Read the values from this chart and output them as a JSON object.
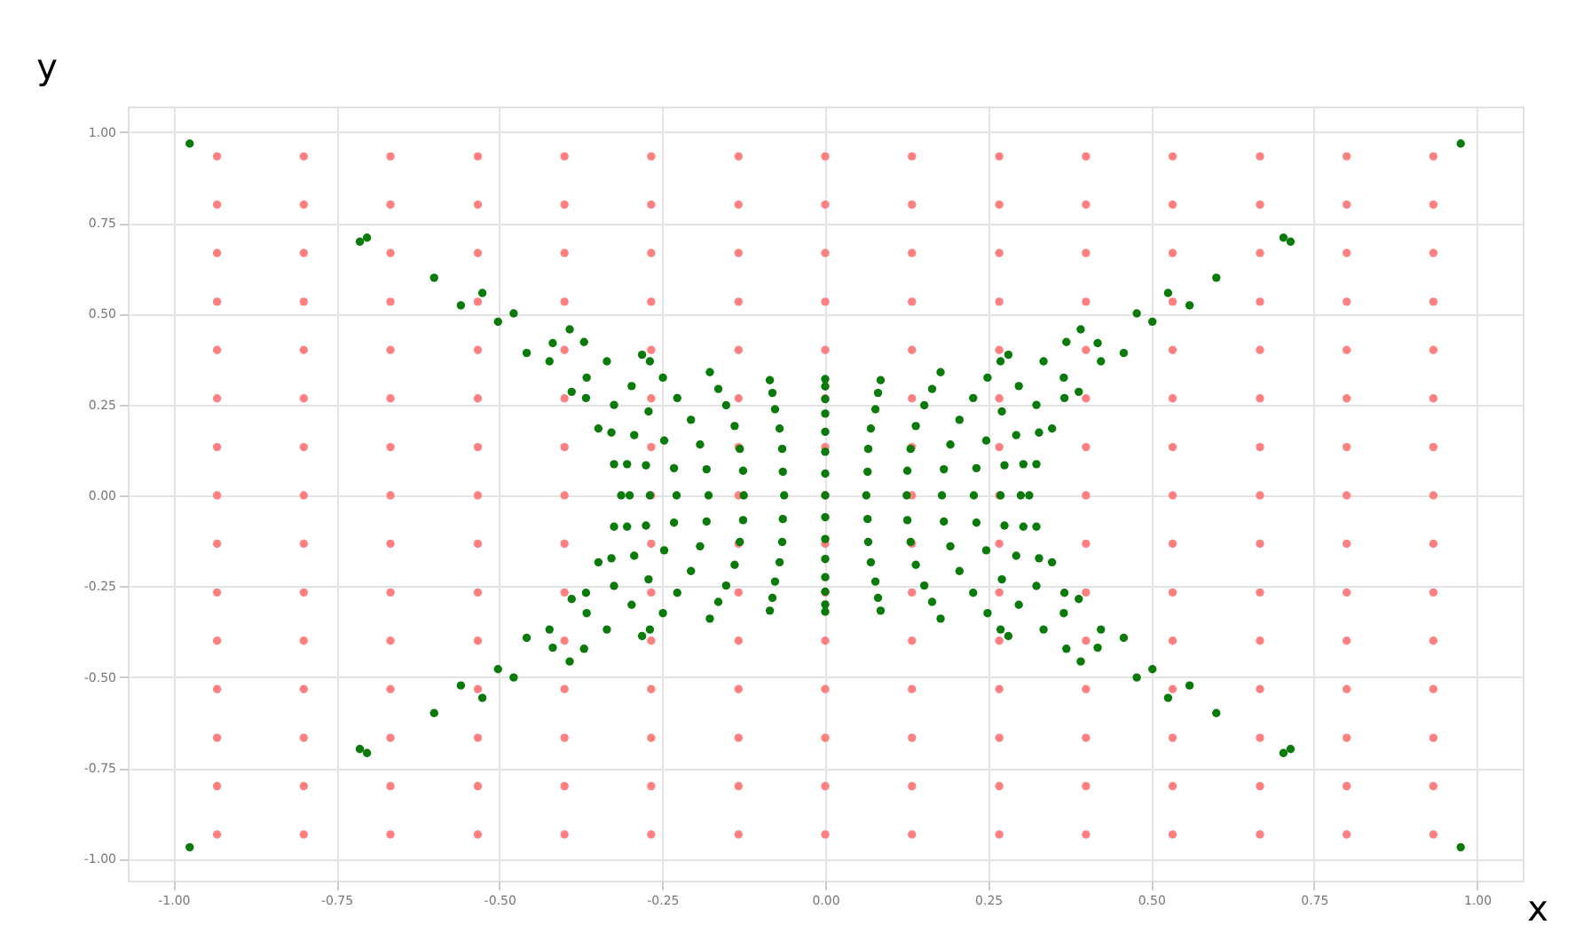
{
  "chart_data": {
    "type": "scatter",
    "xlabel": "x",
    "ylabel": "y",
    "xlim": [
      -1.07,
      1.07
    ],
    "ylim": [
      -1.06,
      1.07
    ],
    "xticks": [
      {
        "value": -1,
        "label": "-1.00"
      },
      {
        "value": -0.75,
        "label": "-0.75"
      },
      {
        "value": -0.5,
        "label": "-0.50"
      },
      {
        "value": -0.25,
        "label": "-0.25"
      },
      {
        "value": 0,
        "label": "0.00"
      },
      {
        "value": 0.25,
        "label": "0.25"
      },
      {
        "value": 0.5,
        "label": "0.50"
      },
      {
        "value": 0.75,
        "label": "0.75"
      },
      {
        "value": 1,
        "label": "1.00"
      }
    ],
    "yticks": [
      {
        "value": -1,
        "label": "-1.00"
      },
      {
        "value": -0.75,
        "label": "-0.75"
      },
      {
        "value": -0.5,
        "label": "-0.50"
      },
      {
        "value": -0.25,
        "label": "-0.25"
      },
      {
        "value": 0,
        "label": "0.00"
      },
      {
        "value": 0.25,
        "label": "0.25"
      },
      {
        "value": 0.5,
        "label": "0.50"
      },
      {
        "value": 0.75,
        "label": "0.75"
      },
      {
        "value": 1,
        "label": "1.00"
      }
    ],
    "grid": true,
    "marker": "circle",
    "series": [
      {
        "color": "#ff8080",
        "x": [
          -0.933,
          -0.8,
          -0.667,
          -0.533,
          -0.4,
          -0.267,
          -0.133,
          0,
          0.133,
          0.267,
          0.4,
          0.533,
          0.667,
          0.8,
          0.933,
          -0.933,
          -0.8,
          -0.667,
          -0.533,
          -0.4,
          -0.267,
          -0.133,
          0,
          0.133,
          0.267,
          0.4,
          0.533,
          0.667,
          0.8,
          0.933,
          -0.933,
          -0.8,
          -0.667,
          -0.533,
          -0.4,
          -0.267,
          -0.133,
          0,
          0.133,
          0.267,
          0.4,
          0.533,
          0.667,
          0.8,
          0.933,
          -0.933,
          -0.8,
          -0.667,
          -0.533,
          -0.4,
          -0.267,
          -0.133,
          0,
          0.133,
          0.267,
          0.4,
          0.533,
          0.667,
          0.8,
          0.933,
          -0.933,
          -0.8,
          -0.667,
          -0.533,
          -0.4,
          -0.267,
          -0.133,
          0,
          0.133,
          0.267,
          0.4,
          0.533,
          0.667,
          0.8,
          0.933,
          -0.933,
          -0.8,
          -0.667,
          -0.533,
          -0.4,
          -0.267,
          -0.133,
          0,
          0.133,
          0.267,
          0.4,
          0.533,
          0.667,
          0.8,
          0.933,
          -0.933,
          -0.8,
          -0.667,
          -0.533,
          -0.4,
          -0.267,
          -0.133,
          0,
          0.133,
          0.267,
          0.4,
          0.533,
          0.667,
          0.8,
          0.933,
          -0.933,
          -0.8,
          -0.667,
          -0.533,
          -0.4,
          -0.267,
          -0.133,
          0,
          0.133,
          0.267,
          0.4,
          0.533,
          0.667,
          0.8,
          0.933,
          -0.933,
          -0.8,
          -0.667,
          -0.533,
          -0.4,
          -0.267,
          -0.133,
          0,
          0.133,
          0.267,
          0.4,
          0.533,
          0.667,
          0.8,
          0.933,
          -0.933,
          -0.8,
          -0.667,
          -0.533,
          -0.4,
          -0.267,
          -0.133,
          0,
          0.133,
          0.267,
          0.4,
          0.533,
          0.667,
          0.8,
          0.933,
          -0.933,
          -0.8,
          -0.667,
          -0.533,
          -0.4,
          -0.267,
          -0.133,
          0,
          0.133,
          0.267,
          0.4,
          0.533,
          0.667,
          0.8,
          0.933,
          -0.933,
          -0.8,
          -0.667,
          -0.533,
          -0.4,
          -0.267,
          -0.133,
          0,
          0.133,
          0.267,
          0.4,
          0.533,
          0.667,
          0.8,
          0.933,
          -0.933,
          -0.8,
          -0.667,
          -0.533,
          -0.4,
          -0.267,
          -0.133,
          0,
          0.133,
          0.267,
          0.4,
          0.533,
          0.667,
          0.8,
          0.933,
          -0.933,
          -0.8,
          -0.667,
          -0.533,
          -0.4,
          -0.267,
          -0.133,
          0,
          0.133,
          0.267,
          0.4,
          0.533,
          0.667,
          0.8,
          0.933,
          -0.933,
          -0.8,
          -0.667,
          -0.533,
          -0.4,
          -0.267,
          -0.133,
          0,
          0.133,
          0.267,
          0.4,
          0.533,
          0.667,
          0.8,
          0.933
        ],
        "values": [
          -0.933,
          -0.933,
          -0.933,
          -0.933,
          -0.933,
          -0.933,
          -0.933,
          -0.933,
          -0.933,
          -0.933,
          -0.933,
          -0.933,
          -0.933,
          -0.933,
          -0.933,
          -0.8,
          -0.8,
          -0.8,
          -0.8,
          -0.8,
          -0.8,
          -0.8,
          -0.8,
          -0.8,
          -0.8,
          -0.8,
          -0.8,
          -0.8,
          -0.8,
          -0.8,
          -0.667,
          -0.667,
          -0.667,
          -0.667,
          -0.667,
          -0.667,
          -0.667,
          -0.667,
          -0.667,
          -0.667,
          -0.667,
          -0.667,
          -0.667,
          -0.667,
          -0.667,
          -0.533,
          -0.533,
          -0.533,
          -0.533,
          -0.533,
          -0.533,
          -0.533,
          -0.533,
          -0.533,
          -0.533,
          -0.533,
          -0.533,
          -0.533,
          -0.533,
          -0.533,
          -0.4,
          -0.4,
          -0.4,
          -0.4,
          -0.4,
          -0.4,
          -0.4,
          -0.4,
          -0.4,
          -0.4,
          -0.4,
          -0.4,
          -0.4,
          -0.4,
          -0.4,
          -0.267,
          -0.267,
          -0.267,
          -0.267,
          -0.267,
          -0.267,
          -0.267,
          -0.267,
          -0.267,
          -0.267,
          -0.267,
          -0.267,
          -0.267,
          -0.267,
          -0.267,
          -0.133,
          -0.133,
          -0.133,
          -0.133,
          -0.133,
          -0.133,
          -0.133,
          -0.133,
          -0.133,
          -0.133,
          -0.133,
          -0.133,
          -0.133,
          -0.133,
          -0.133,
          0,
          0,
          0,
          0,
          0,
          0,
          0,
          0,
          0,
          0,
          0,
          0,
          0,
          0,
          0,
          0.133,
          0.133,
          0.133,
          0.133,
          0.133,
          0.133,
          0.133,
          0.133,
          0.133,
          0.133,
          0.133,
          0.133,
          0.133,
          0.133,
          0.133,
          0.267,
          0.267,
          0.267,
          0.267,
          0.267,
          0.267,
          0.267,
          0.267,
          0.267,
          0.267,
          0.267,
          0.267,
          0.267,
          0.267,
          0.267,
          0.4,
          0.4,
          0.4,
          0.4,
          0.4,
          0.4,
          0.4,
          0.4,
          0.4,
          0.4,
          0.4,
          0.4,
          0.4,
          0.4,
          0.4,
          0.533,
          0.533,
          0.533,
          0.533,
          0.533,
          0.533,
          0.533,
          0.533,
          0.533,
          0.533,
          0.533,
          0.533,
          0.533,
          0.533,
          0.533,
          0.667,
          0.667,
          0.667,
          0.667,
          0.667,
          0.667,
          0.667,
          0.667,
          0.667,
          0.667,
          0.667,
          0.667,
          0.667,
          0.667,
          0.667,
          0.8,
          0.8,
          0.8,
          0.8,
          0.8,
          0.8,
          0.8,
          0.8,
          0.8,
          0.8,
          0.8,
          0.8,
          0.8,
          0.8,
          0.8,
          0.933,
          0.933,
          0.933,
          0.933,
          0.933,
          0.933,
          0.933,
          0.933,
          0.933,
          0.933,
          0.933,
          0.933,
          0.933,
          0.933,
          0.933
        ]
      },
      {
        "color": "#0a7a0a",
        "x": [
          0.065,
          0.066,
          0.07,
          0.077,
          0.081,
          0.085,
          0.126,
          0.131,
          0.139,
          0.152,
          0.164,
          0.177,
          0.182,
          0.192,
          0.206,
          0.227,
          0.249,
          0.269,
          0.281,
          0.232,
          0.247,
          0.271,
          0.297,
          0.335,
          0.37,
          0.275,
          0.293,
          0.324,
          0.366,
          0.418,
          0.304,
          0.328,
          0.367,
          0.423,
          0.324,
          0.348,
          0.389,
          0.458,
          0.392,
          0.478,
          0.502,
          0.526,
          0.559,
          0.6,
          0.703,
          0.714,
          0.975,
          -0.065,
          -0.066,
          -0.07,
          -0.077,
          -0.081,
          -0.085,
          -0.126,
          -0.131,
          -0.139,
          -0.152,
          -0.164,
          -0.177,
          -0.182,
          -0.192,
          -0.206,
          -0.227,
          -0.249,
          -0.269,
          -0.281,
          -0.232,
          -0.247,
          -0.271,
          -0.297,
          -0.335,
          -0.37,
          -0.275,
          -0.293,
          -0.324,
          -0.366,
          -0.418,
          -0.304,
          -0.328,
          -0.367,
          -0.423,
          -0.324,
          -0.348,
          -0.389,
          -0.458,
          -0.392,
          -0.478,
          -0.502,
          -0.526,
          -0.559,
          -0.6,
          -0.703,
          -0.714,
          -0.975,
          -0.065,
          -0.066,
          -0.07,
          -0.077,
          -0.081,
          -0.085,
          -0.126,
          -0.131,
          -0.139,
          -0.152,
          -0.164,
          -0.177,
          -0.182,
          -0.192,
          -0.206,
          -0.227,
          -0.249,
          -0.269,
          -0.281,
          -0.232,
          -0.247,
          -0.271,
          -0.297,
          -0.335,
          -0.37,
          -0.275,
          -0.293,
          -0.324,
          -0.366,
          -0.418,
          -0.304,
          -0.328,
          -0.367,
          -0.423,
          -0.324,
          -0.348,
          -0.389,
          -0.458,
          -0.392,
          -0.478,
          -0.502,
          -0.526,
          -0.559,
          -0.6,
          -0.703,
          -0.714,
          -0.975,
          0.065,
          0.066,
          0.07,
          0.077,
          0.081,
          0.085,
          0.126,
          0.131,
          0.139,
          0.152,
          0.164,
          0.177,
          0.182,
          0.192,
          0.206,
          0.227,
          0.249,
          0.269,
          0.281,
          0.232,
          0.247,
          0.271,
          0.297,
          0.335,
          0.37,
          0.275,
          0.293,
          0.324,
          0.366,
          0.418,
          0.304,
          0.328,
          0.367,
          0.423,
          0.324,
          0.348,
          0.389,
          0.458,
          0.392,
          0.478,
          0.502,
          0.526,
          0.559,
          0.6,
          0.703,
          0.714,
          0.975,
          0,
          0,
          0,
          0,
          0,
          0,
          0,
          0,
          0,
          0,
          0,
          0,
          0,
          0,
          0,
          0.063,
          0.125,
          0.179,
          0.228,
          0.269,
          0.3,
          0.313,
          -0.063,
          -0.125,
          -0.179,
          -0.228,
          -0.269,
          -0.3,
          -0.313
        ],
        "values": [
          0.065,
          0.128,
          0.184,
          0.237,
          0.282,
          0.317,
          0.068,
          0.128,
          0.191,
          0.248,
          0.293,
          0.339,
          0.072,
          0.14,
          0.208,
          0.268,
          0.324,
          0.369,
          0.387,
          0.075,
          0.151,
          0.231,
          0.301,
          0.369,
          0.422,
          0.083,
          0.166,
          0.249,
          0.324,
          0.419,
          0.086,
          0.173,
          0.268,
          0.369,
          0.086,
          0.184,
          0.285,
          0.392,
          0.457,
          0.501,
          0.478,
          0.557,
          0.523,
          0.599,
          0.709,
          0.698,
          0.968,
          0.065,
          0.128,
          0.184,
          0.237,
          0.282,
          0.317,
          0.068,
          0.128,
          0.191,
          0.248,
          0.293,
          0.339,
          0.072,
          0.14,
          0.208,
          0.268,
          0.324,
          0.369,
          0.387,
          0.075,
          0.151,
          0.231,
          0.301,
          0.369,
          0.422,
          0.083,
          0.166,
          0.249,
          0.324,
          0.419,
          0.086,
          0.173,
          0.268,
          0.369,
          0.086,
          0.184,
          0.285,
          0.392,
          0.457,
          0.501,
          0.478,
          0.557,
          0.523,
          0.599,
          0.709,
          0.698,
          0.968,
          -0.065,
          -0.128,
          -0.184,
          -0.237,
          -0.282,
          -0.317,
          -0.068,
          -0.128,
          -0.191,
          -0.248,
          -0.293,
          -0.339,
          -0.072,
          -0.14,
          -0.208,
          -0.268,
          -0.324,
          -0.369,
          -0.387,
          -0.075,
          -0.151,
          -0.231,
          -0.301,
          -0.369,
          -0.422,
          -0.083,
          -0.166,
          -0.249,
          -0.324,
          -0.419,
          -0.086,
          -0.173,
          -0.268,
          -0.369,
          -0.086,
          -0.184,
          -0.285,
          -0.392,
          -0.457,
          -0.501,
          -0.478,
          -0.557,
          -0.523,
          -0.599,
          -0.709,
          -0.698,
          -0.968,
          -0.065,
          -0.128,
          -0.184,
          -0.237,
          -0.282,
          -0.317,
          -0.068,
          -0.128,
          -0.191,
          -0.248,
          -0.293,
          -0.339,
          -0.072,
          -0.14,
          -0.208,
          -0.268,
          -0.324,
          -0.369,
          -0.387,
          -0.075,
          -0.151,
          -0.231,
          -0.301,
          -0.369,
          -0.422,
          -0.083,
          -0.166,
          -0.249,
          -0.324,
          -0.419,
          -0.086,
          -0.173,
          -0.268,
          -0.369,
          -0.086,
          -0.184,
          -0.285,
          -0.392,
          -0.457,
          -0.501,
          -0.478,
          -0.557,
          -0.523,
          -0.599,
          -0.709,
          -0.698,
          -0.968,
          0,
          0.06,
          0.12,
          0.175,
          0.225,
          0.265,
          0.3,
          0.32,
          -0.06,
          -0.12,
          -0.175,
          -0.225,
          -0.265,
          -0.3,
          -0.32,
          0,
          0,
          0,
          0,
          0,
          0,
          0,
          0,
          0,
          0,
          0,
          0,
          0,
          0
        ]
      }
    ]
  }
}
